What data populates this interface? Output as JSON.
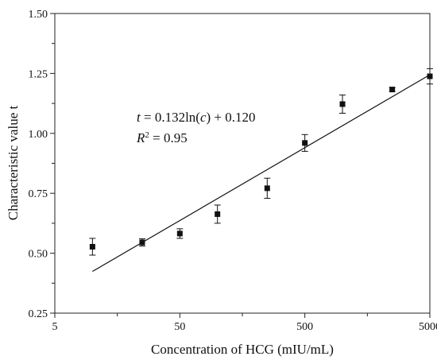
{
  "chart_data": {
    "type": "scatter",
    "title": "",
    "xlabel": "Concentration of  HCG (mIU/mL)",
    "ylabel": "Characteristic value  t",
    "x_scale": "log",
    "xlim": [
      5,
      5000
    ],
    "ylim": [
      0.25,
      1.5
    ],
    "x_ticks": [
      "5",
      "50",
      "500",
      "5000"
    ],
    "y_ticks": [
      "0.25",
      "0.50",
      "0.75",
      "1.00",
      "1.25",
      "1.50"
    ],
    "grid": false,
    "legend": "none",
    "points": [
      {
        "x": 10,
        "y": 0.527,
        "err": 0.035
      },
      {
        "x": 25,
        "y": 0.545,
        "err": 0.015
      },
      {
        "x": 50,
        "y": 0.582,
        "err": 0.02
      },
      {
        "x": 100,
        "y": 0.663,
        "err": 0.038
      },
      {
        "x": 250,
        "y": 0.771,
        "err": 0.042
      },
      {
        "x": 500,
        "y": 0.96,
        "err": 0.035
      },
      {
        "x": 1000,
        "y": 1.122,
        "err": 0.038
      },
      {
        "x": 2500,
        "y": 1.183,
        "err": 0.008
      },
      {
        "x": 5000,
        "y": 1.238,
        "err": 0.032
      }
    ],
    "fit_line": {
      "slope": 0.132,
      "intercept": 0.12,
      "x_range": [
        10,
        5000
      ]
    },
    "annotation": {
      "equation": "t = 0.132ln(c) + 0.120",
      "r_squared": "R² = 0.95"
    },
    "marker_color": "#111111"
  }
}
